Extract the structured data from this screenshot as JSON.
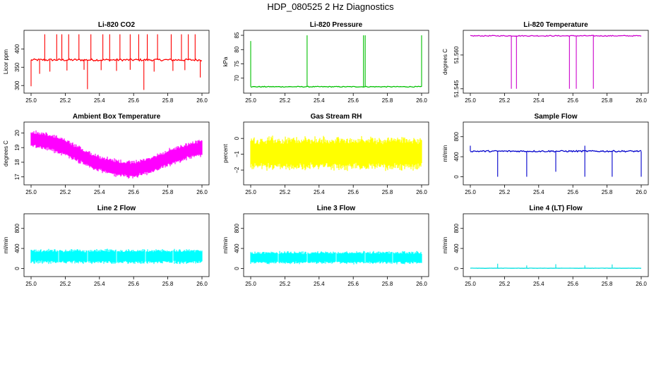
{
  "figure_title": "HDP_080525  2 Hz Diagnostics",
  "chart_data": [
    {
      "type": "line",
      "title": "Li-820 CO2",
      "ylabel": "Licor ppm",
      "color": "#ff0000",
      "xlim": [
        25.0,
        26.0
      ],
      "ylim": [
        285,
        445
      ],
      "xticks": [
        25.0,
        25.2,
        25.4,
        25.6,
        25.8,
        26.0
      ],
      "xtick_labels": [
        "25.0",
        "25.2",
        "25.4",
        "25.6",
        "25.8",
        "26.0"
      ],
      "yticks": [
        300,
        350,
        400
      ],
      "ytick_labels": [
        "300",
        "350",
        "400"
      ],
      "baseline": 370,
      "noise": 3,
      "spikes_up": [
        [
          25.08,
          440
        ],
        [
          25.15,
          440
        ],
        [
          25.18,
          440
        ],
        [
          25.22,
          440
        ],
        [
          25.28,
          440
        ],
        [
          25.35,
          440
        ],
        [
          25.42,
          440
        ],
        [
          25.46,
          440
        ],
        [
          25.52,
          440
        ],
        [
          25.58,
          440
        ],
        [
          25.63,
          440
        ],
        [
          25.68,
          440
        ],
        [
          25.74,
          440
        ],
        [
          25.82,
          440
        ],
        [
          25.88,
          440
        ],
        [
          25.92,
          440
        ],
        [
          25.96,
          440
        ]
      ],
      "spikes_down": [
        [
          25.0,
          298
        ],
        [
          25.05,
          332
        ],
        [
          25.11,
          338
        ],
        [
          25.21,
          341
        ],
        [
          25.31,
          343
        ],
        [
          25.33,
          290
        ],
        [
          25.41,
          342
        ],
        [
          25.5,
          340
        ],
        [
          25.58,
          343
        ],
        [
          25.66,
          288
        ],
        [
          25.72,
          338
        ],
        [
          25.83,
          340
        ],
        [
          25.9,
          342
        ],
        [
          25.99,
          322
        ]
      ]
    },
    {
      "type": "line",
      "title": "Li-820 Pressure",
      "ylabel": "kPa",
      "color": "#00c000",
      "xlim": [
        25.0,
        26.0
      ],
      "ylim": [
        65.5,
        86
      ],
      "xticks": [
        25.0,
        25.2,
        25.4,
        25.6,
        25.8,
        26.0
      ],
      "xtick_labels": [
        "25.0",
        "25.2",
        "25.4",
        "25.6",
        "25.8",
        "26.0"
      ],
      "yticks": [
        70,
        75,
        80,
        85
      ],
      "ytick_labels": [
        "70",
        "75",
        "80",
        "85"
      ],
      "baseline": 67,
      "noise": 0.15,
      "spikes_up": [
        [
          25.0,
          83
        ],
        [
          25.33,
          85
        ],
        [
          25.66,
          85
        ],
        [
          25.67,
          85
        ],
        [
          26.0,
          85
        ]
      ],
      "spikes_down": []
    },
    {
      "type": "line",
      "title": "Li-820 Temperature",
      "ylabel": "degrees C",
      "color": "#cc00cc",
      "xlim": [
        25.0,
        26.0
      ],
      "ylim": [
        51.544,
        51.57
      ],
      "xticks": [
        25.0,
        25.2,
        25.4,
        25.6,
        25.8,
        26.0
      ],
      "xtick_labels": [
        "25.0",
        "25.2",
        "25.4",
        "25.6",
        "25.8",
        "26.0"
      ],
      "yticks": [
        51.545,
        51.56
      ],
      "ytick_labels": [
        "51.545",
        "51.560"
      ],
      "baseline": 51.5685,
      "noise": 0.0002,
      "spikes_up": [],
      "spikes_down": [
        [
          25.24,
          51.545
        ],
        [
          25.27,
          51.545
        ],
        [
          25.58,
          51.545
        ],
        [
          25.62,
          51.545
        ],
        [
          25.72,
          51.545
        ]
      ]
    },
    {
      "type": "band",
      "title": "Ambient Box Temperature",
      "ylabel": "degrees C",
      "color": "#ff00ff",
      "xlim": [
        25.0,
        26.0
      ],
      "ylim": [
        16.6,
        20.6
      ],
      "xticks": [
        25.0,
        25.2,
        25.4,
        25.6,
        25.8,
        26.0
      ],
      "xtick_labels": [
        "25.0",
        "25.2",
        "25.4",
        "25.6",
        "25.8",
        "26.0"
      ],
      "yticks": [
        17,
        18,
        19,
        20
      ],
      "ytick_labels": [
        "17",
        "18",
        "19",
        "20"
      ],
      "center": [
        [
          25.0,
          19.6
        ],
        [
          25.1,
          19.4
        ],
        [
          25.2,
          19.0
        ],
        [
          25.3,
          18.4
        ],
        [
          25.4,
          17.9
        ],
        [
          25.5,
          17.6
        ],
        [
          25.6,
          17.5
        ],
        [
          25.7,
          17.8
        ],
        [
          25.8,
          18.3
        ],
        [
          25.9,
          18.7
        ],
        [
          26.0,
          19.0
        ]
      ],
      "halfwidth": 0.55
    },
    {
      "type": "band",
      "title": "Gas Stream RH",
      "ylabel": "percent",
      "color": "#ffff00",
      "xlim": [
        25.0,
        26.0
      ],
      "ylim": [
        -2.8,
        0.9
      ],
      "xticks": [
        25.0,
        25.2,
        25.4,
        25.6,
        25.8,
        26.0
      ],
      "xtick_labels": [
        "25.0",
        "25.2",
        "25.4",
        "25.6",
        "25.8",
        "26.0"
      ],
      "yticks": [
        -2,
        -1,
        0
      ],
      "ytick_labels": [
        "−2",
        "−1",
        "0"
      ],
      "center": [
        [
          25.0,
          -0.95
        ],
        [
          26.0,
          -0.95
        ]
      ],
      "halfwidth": 0.95
    },
    {
      "type": "line",
      "title": "Sample Flow",
      "ylabel": "ml/min",
      "color": "#0000cc",
      "xlim": [
        25.0,
        26.0
      ],
      "ylim": [
        -120,
        1050
      ],
      "xticks": [
        25.0,
        25.2,
        25.4,
        25.6,
        25.8,
        26.0
      ],
      "xtick_labels": [
        "25.0",
        "25.2",
        "25.4",
        "25.6",
        "25.8",
        "26.0"
      ],
      "yticks": [
        0,
        400,
        800
      ],
      "ytick_labels": [
        "0",
        "400",
        "800"
      ],
      "baseline": 510,
      "noise": 15,
      "spikes_up": [
        [
          25.0,
          620
        ],
        [
          25.67,
          620
        ]
      ],
      "spikes_down": [
        [
          25.16,
          0
        ],
        [
          25.33,
          0
        ],
        [
          25.5,
          100
        ],
        [
          25.67,
          0
        ],
        [
          25.83,
          0
        ],
        [
          26.0,
          0
        ]
      ]
    },
    {
      "type": "band",
      "title": "Line 2 Flow",
      "ylabel": "ml/min",
      "color": "#00ffff",
      "xlim": [
        25.0,
        26.0
      ],
      "ylim": [
        -120,
        1050
      ],
      "xticks": [
        25.0,
        25.2,
        25.4,
        25.6,
        25.8,
        26.0
      ],
      "xtick_labels": [
        "25.0",
        "25.2",
        "25.4",
        "25.6",
        "25.8",
        "26.0"
      ],
      "yticks": [
        0,
        400,
        800
      ],
      "ytick_labels": [
        "0",
        "400",
        "800"
      ],
      "center": [
        [
          25.0,
          240
        ],
        [
          26.0,
          240
        ]
      ],
      "halfwidth": 130,
      "gaps": [
        25.16,
        25.33,
        25.5,
        25.67,
        25.83
      ]
    },
    {
      "type": "band",
      "title": "Line 3 Flow",
      "ylabel": "ml/min",
      "color": "#00ffff",
      "xlim": [
        25.0,
        26.0
      ],
      "ylim": [
        -120,
        1050
      ],
      "xticks": [
        25.0,
        25.2,
        25.4,
        25.6,
        25.8,
        26.0
      ],
      "xtick_labels": [
        "25.0",
        "25.2",
        "25.4",
        "25.6",
        "25.8",
        "26.0"
      ],
      "yticks": [
        0,
        400,
        800
      ],
      "ytick_labels": [
        "0",
        "400",
        "800"
      ],
      "center": [
        [
          25.0,
          215
        ],
        [
          26.0,
          215
        ]
      ],
      "halfwidth": 115,
      "gaps": [
        25.16,
        25.33,
        25.5,
        25.67,
        25.83
      ]
    },
    {
      "type": "line",
      "title": "Line 4 (LT) Flow",
      "ylabel": "ml/min",
      "color": "#00e0e0",
      "xlim": [
        25.0,
        26.0
      ],
      "ylim": [
        -120,
        1050
      ],
      "xticks": [
        25.0,
        25.2,
        25.4,
        25.6,
        25.8,
        26.0
      ],
      "xtick_labels": [
        "25.0",
        "25.2",
        "25.4",
        "25.6",
        "25.8",
        "26.0"
      ],
      "yticks": [
        0,
        400,
        800
      ],
      "ytick_labels": [
        "0",
        "400",
        "800"
      ],
      "baseline": 5,
      "noise": 2,
      "spikes_up": [
        [
          25.16,
          95
        ],
        [
          25.33,
          60
        ],
        [
          25.5,
          85
        ],
        [
          25.67,
          60
        ],
        [
          25.83,
          80
        ]
      ],
      "spikes_down": []
    }
  ]
}
